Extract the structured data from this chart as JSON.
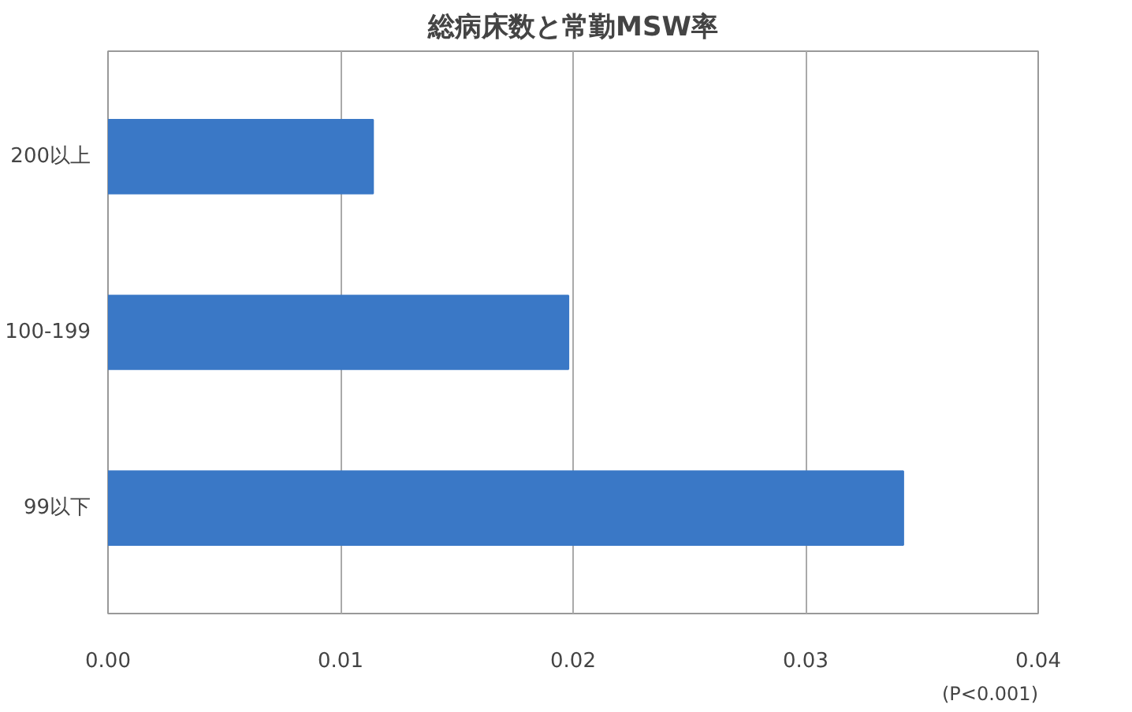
{
  "chart_data": {
    "type": "bar",
    "orientation": "horizontal",
    "title": "総病床数と常勤MSW率",
    "categories": [
      "200以上",
      "100-199",
      "99以下"
    ],
    "values": [
      0.0114,
      0.0198,
      0.0342
    ],
    "color": "#3a78c6",
    "xlim": [
      0,
      0.04
    ],
    "xticks": [
      {
        "value": 0,
        "label": "0.00"
      },
      {
        "value": 0.01,
        "label": "0.01"
      },
      {
        "value": 0.02,
        "label": "0.02"
      },
      {
        "value": 0.03,
        "label": "0.03"
      },
      {
        "value": 0.04,
        "label": "0.04"
      }
    ],
    "grid": "x",
    "annotations": [
      "(P<0.001)"
    ]
  }
}
